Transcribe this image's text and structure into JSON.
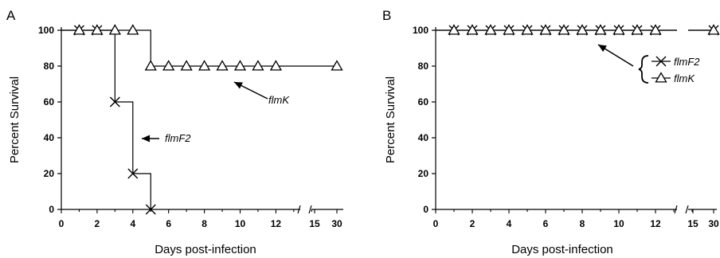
{
  "chart_data": [
    {
      "panel": "A",
      "type": "line",
      "title": "",
      "xlabel": "Days post-infection",
      "ylabel": "Percent Survival",
      "ylim": [
        0,
        100
      ],
      "yticks": [
        "0",
        "20",
        "40",
        "60",
        "80",
        "100"
      ],
      "xticks": [
        "0",
        "2",
        "4",
        "6",
        "8",
        "10",
        "12",
        "15",
        "30"
      ],
      "x_axis_break": "between 14 and 15",
      "grid": false,
      "series": [
        {
          "name": "flmF2",
          "marker": "x",
          "color": "#000000",
          "x": [
            1,
            2,
            3,
            4,
            5
          ],
          "y": [
            100,
            100,
            60,
            20,
            0
          ]
        },
        {
          "name": "flmK",
          "marker": "triangle",
          "color": "#000000",
          "x": [
            1,
            2,
            3,
            4,
            5,
            6,
            7,
            8,
            9,
            10,
            11,
            12,
            30
          ],
          "y": [
            100,
            100,
            100,
            100,
            80,
            80,
            80,
            80,
            80,
            80,
            80,
            80,
            80
          ]
        }
      ],
      "annotations": [
        {
          "text": "flmK",
          "points_to_series": "flmK"
        },
        {
          "text": "flmF2",
          "points_to_series": "flmF2"
        }
      ]
    },
    {
      "panel": "B",
      "type": "line",
      "title": "",
      "xlabel": "Days post-infection",
      "ylabel": "Percent Survival",
      "ylim": [
        0,
        100
      ],
      "yticks": [
        "0",
        "20",
        "40",
        "60",
        "80",
        "100"
      ],
      "xticks": [
        "0",
        "2",
        "4",
        "6",
        "8",
        "10",
        "12",
        "15",
        "30"
      ],
      "x_axis_break": "between 14 and 15",
      "grid": false,
      "legend_position": "right",
      "series": [
        {
          "name": "flmF2",
          "marker": "x",
          "color": "#000000",
          "x": [
            1,
            2,
            3,
            4,
            5,
            6,
            7,
            8,
            9,
            10,
            11,
            12,
            30
          ],
          "y": [
            100,
            100,
            100,
            100,
            100,
            100,
            100,
            100,
            100,
            100,
            100,
            100,
            100
          ]
        },
        {
          "name": "flmK",
          "marker": "triangle",
          "color": "#000000",
          "x": [
            1,
            2,
            3,
            4,
            5,
            6,
            7,
            8,
            9,
            10,
            11,
            12,
            30
          ],
          "y": [
            100,
            100,
            100,
            100,
            100,
            100,
            100,
            100,
            100,
            100,
            100,
            100,
            100
          ]
        }
      ]
    }
  ]
}
